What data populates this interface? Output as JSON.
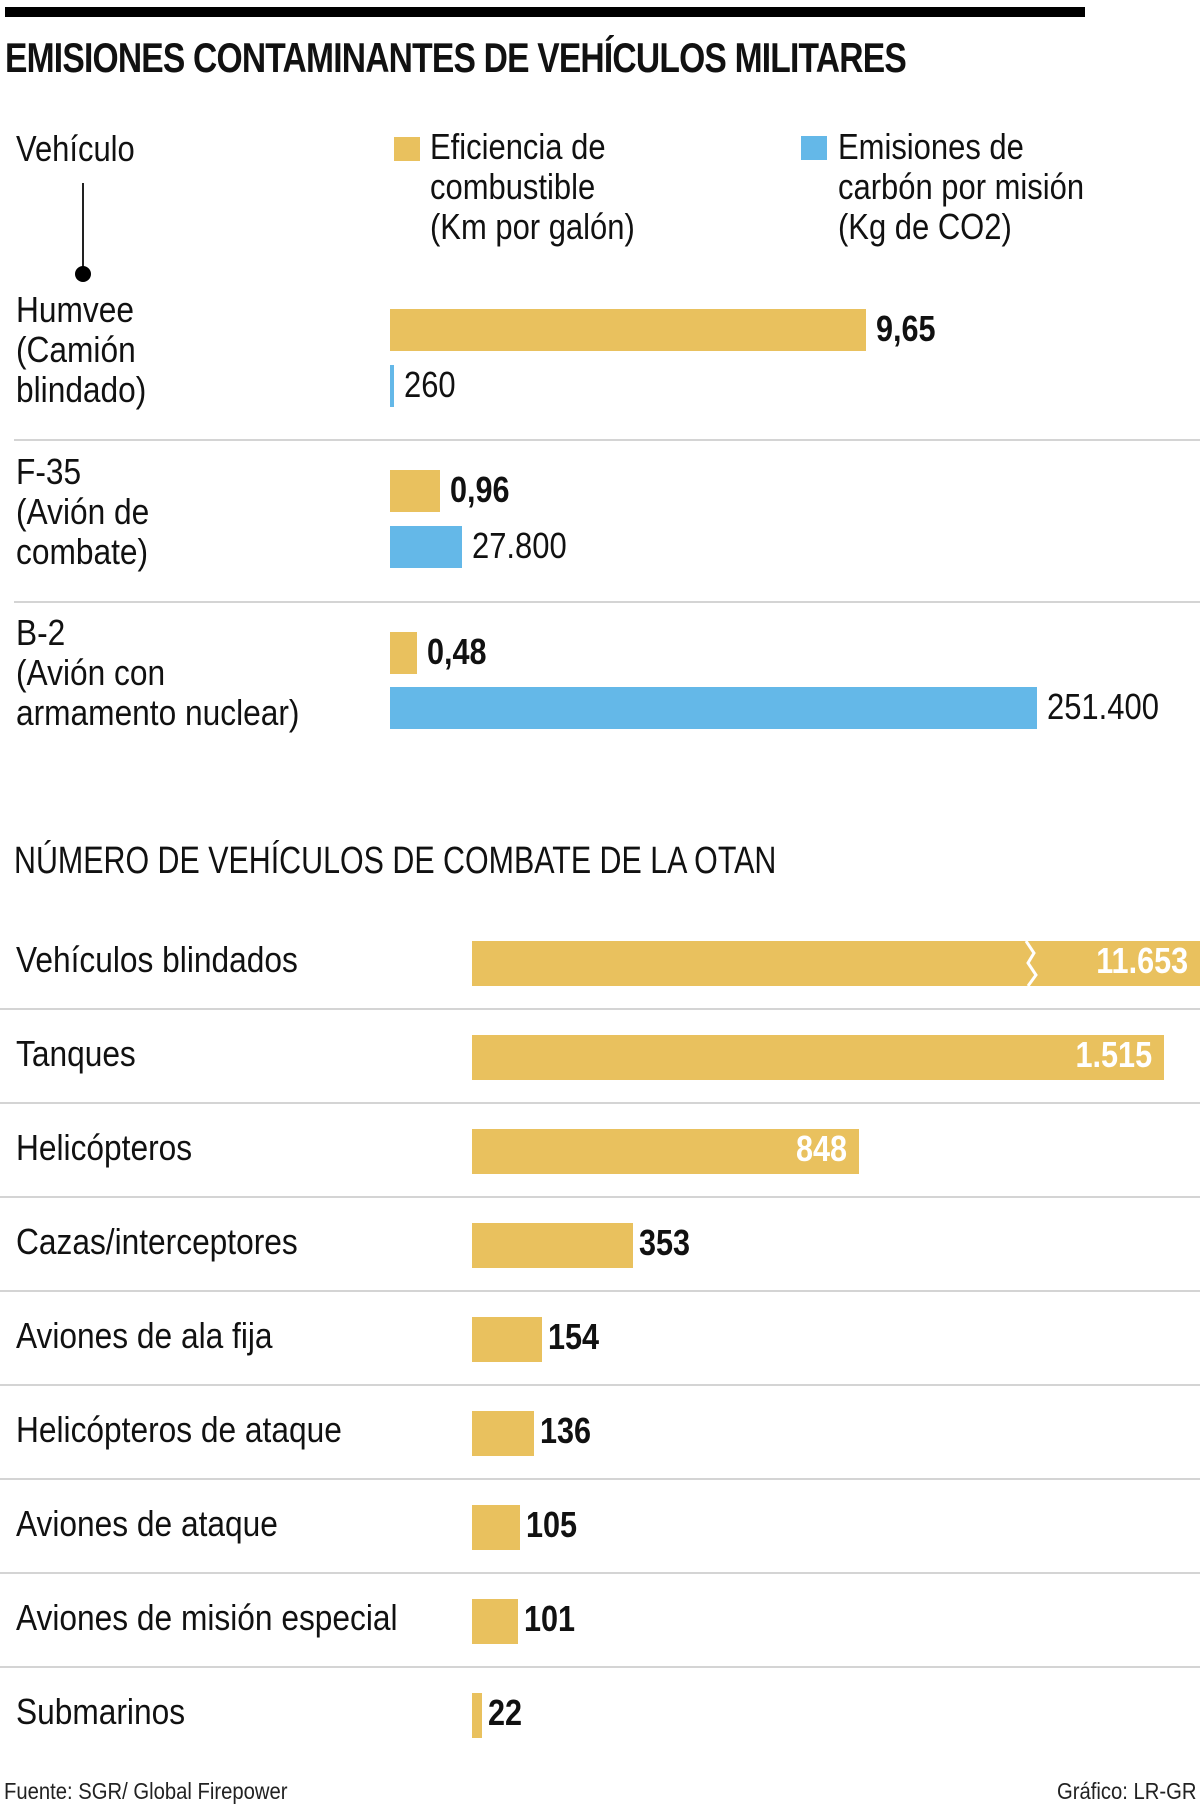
{
  "title": "EMISIONES CONTAMINANTES DE VEHÍCULOS MILITARES",
  "colors": {
    "fuel": "#E9C15E",
    "co2": "#64B8E8",
    "text": "#111111",
    "divider": "#d4d4d4"
  },
  "chart_data": [
    {
      "type": "bar",
      "orientation": "horizontal",
      "title": "Emisiones contaminantes de vehículos militares",
      "column_header": "Vehículo",
      "categories": [
        "Humvee (Camión blindado)",
        "F-35 (Avión de combate)",
        "B-2 (Avión con armamento nuclear)"
      ],
      "category_lines": [
        [
          "Humvee",
          "(Camión",
          "blindado)"
        ],
        [
          "F-35",
          "(Avión de",
          "combate)"
        ],
        [
          "B-2",
          "(Avión con",
          "armamento nuclear)"
        ]
      ],
      "series": [
        {
          "name": "Eficiencia de combustible (Km por galón)",
          "legend_lines": [
            "Eficiencia de",
            "combustible",
            "(Km por galón)"
          ],
          "values": [
            9.65,
            0.96,
            0.48
          ],
          "labels": [
            "9,65",
            "0,96",
            "0,48"
          ]
        },
        {
          "name": "Emisiones de carbón por misión (Kg de CO2)",
          "legend_lines": [
            "Emisiones de",
            "carbón por misión",
            "(Kg de CO2)"
          ],
          "values": [
            260,
            27800,
            251400
          ],
          "labels": [
            "260",
            "27.800",
            "251.400"
          ]
        }
      ],
      "legend_position": "top",
      "grid": false
    },
    {
      "type": "bar",
      "orientation": "horizontal",
      "title": "NÚMERO DE VEHÍCULOS DE COMBATE DE LA OTAN",
      "categories": [
        "Vehículos blindados",
        "Tanques",
        "Helicópteros",
        "Cazas/interceptores",
        "Aviones de ala fija",
        "Helicópteros de ataque",
        "Aviones de ataque",
        "Aviones de misión especial",
        "Submarinos"
      ],
      "values": [
        11653,
        1515,
        848,
        353,
        154,
        136,
        105,
        101,
        22
      ],
      "labels": [
        "11.653",
        "1.515",
        "848",
        "353",
        "154",
        "136",
        "105",
        "101",
        "22"
      ],
      "truncated": [
        true,
        false,
        false,
        false,
        false,
        false,
        false,
        false,
        false
      ],
      "grid": false
    }
  ],
  "footer": {
    "source": "Fuente: SGR/ Global Firepower",
    "credit": "Gráfico: LR-GR"
  }
}
